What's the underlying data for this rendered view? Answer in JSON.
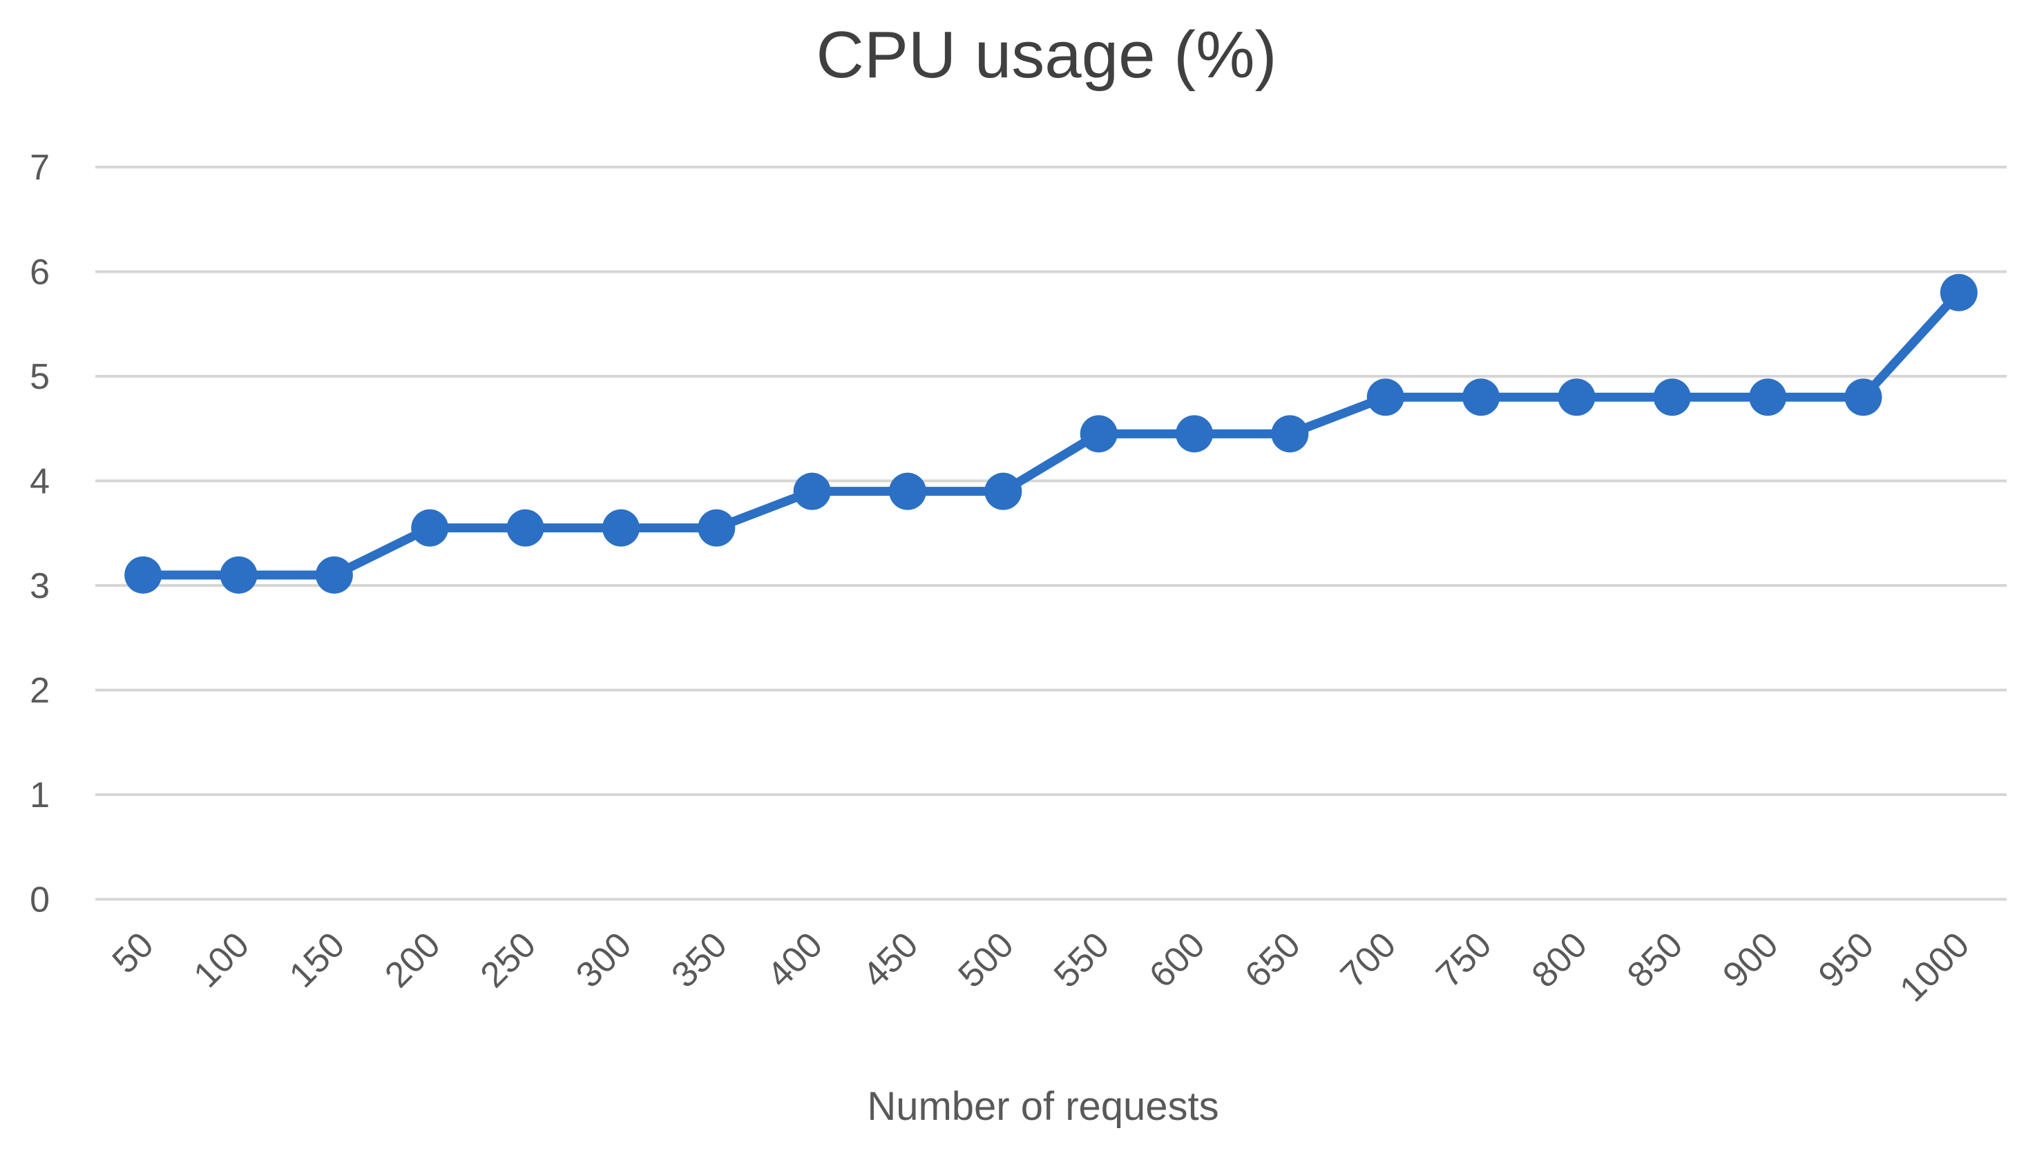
{
  "chart_data": {
    "type": "line",
    "title": "CPU usage (%)",
    "xlabel": "Number of requests",
    "ylabel": "",
    "categories": [
      50,
      100,
      150,
      200,
      250,
      300,
      350,
      400,
      450,
      500,
      550,
      600,
      650,
      700,
      750,
      800,
      850,
      900,
      950,
      1000
    ],
    "series": [
      {
        "name": "CPU usage (%)",
        "values": [
          3.1,
          3.1,
          3.1,
          3.55,
          3.55,
          3.55,
          3.55,
          3.9,
          3.9,
          3.9,
          4.45,
          4.45,
          4.45,
          4.8,
          4.8,
          4.8,
          4.8,
          4.8,
          4.8,
          5.8
        ]
      }
    ],
    "ylim": [
      0,
      7
    ],
    "yticks": [
      0,
      1,
      2,
      3,
      4,
      5,
      6,
      7
    ],
    "grid": true,
    "legend_position": "none",
    "marker": "circle",
    "colors": {
      "line": "#2B70C4",
      "marker": "#2B70C4",
      "gridline": "#D6D6D6",
      "title_text": "#404040",
      "tick_text": "#595959",
      "axis_label_text": "#595959",
      "background": "#FFFFFF"
    }
  }
}
